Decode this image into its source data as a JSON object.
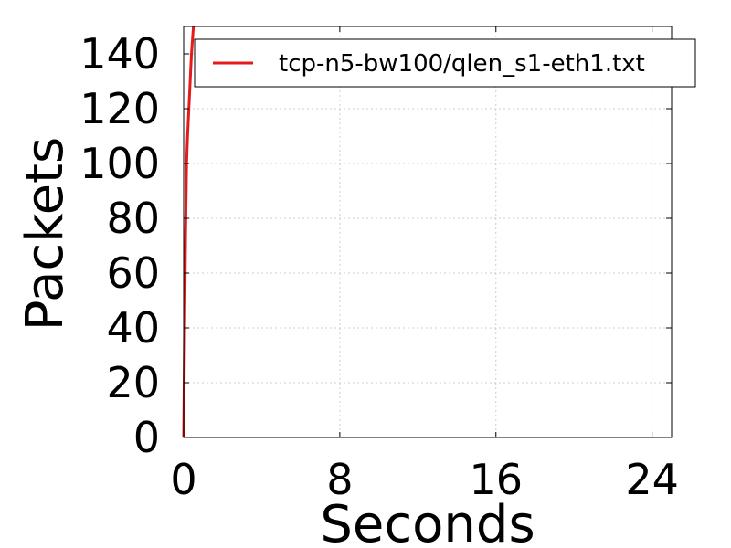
{
  "chart_data": {
    "type": "line",
    "xlabel": "Seconds",
    "ylabel": "Packets",
    "xlim": [
      0,
      25
    ],
    "ylim": [
      0,
      150
    ],
    "xticks": [
      0,
      8,
      16,
      24
    ],
    "yticks": [
      0,
      20,
      40,
      60,
      80,
      100,
      120,
      140
    ],
    "xtick_labels": [
      "0",
      "8",
      "16",
      "24"
    ],
    "ytick_labels": [
      "0",
      "20",
      "40",
      "60",
      "80",
      "100",
      "120",
      "140"
    ],
    "grid": true,
    "legend_position": "top-right",
    "series": [
      {
        "name": "tcp-n5-bw100/qlen_s1-eth1.txt",
        "color": "#e41a1c",
        "x": [
          0,
          0.05,
          0.1,
          0.15,
          0.2,
          0.3,
          0.4,
          0.5
        ],
        "y": [
          0,
          40,
          75,
          100,
          110,
          125,
          140,
          150
        ]
      }
    ]
  }
}
